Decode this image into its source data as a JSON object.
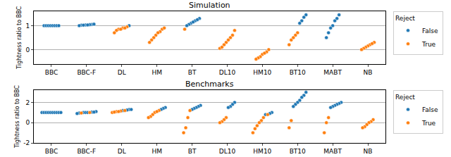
{
  "chart_data": [
    {
      "type": "scatter",
      "title": "Simulation",
      "ylabel": "Tightness ratio to BBC",
      "categories": [
        "BBC",
        "BBC-F",
        "DL",
        "HM",
        "BT",
        "DL10",
        "HM10",
        "BT10",
        "MABT",
        "NB"
      ],
      "ylim": [
        -0.6,
        1.6
      ],
      "yticks": [
        0,
        1
      ],
      "grid": true,
      "legend": "right",
      "legend_title": "Reject",
      "series": [
        {
          "name": "False",
          "color": "#1f77b4",
          "x": [
            "BBC",
            "BBC",
            "BBC",
            "BBC",
            "BBC",
            "BBC",
            "BBC",
            "BBC",
            "BBC-F",
            "BBC-F",
            "BBC-F",
            "BBC-F",
            "BBC-F",
            "BBC-F",
            "BBC-F",
            "BBC-F",
            "DL",
            "BT",
            "BT",
            "BT",
            "BT",
            "BT",
            "BT",
            "BT",
            "BT10",
            "BT10",
            "BT10",
            "BT10",
            "MABT",
            "MABT",
            "MABT",
            "MABT",
            "MABT",
            "MABT",
            "MABT"
          ],
          "values": [
            1,
            1,
            1,
            1,
            1,
            1,
            1,
            1,
            1.05,
            1.03,
            1.02,
            1.04,
            1.0,
            1.02,
            1.03,
            1.06,
            1.0,
            1.2,
            1.1,
            1.05,
            1.3,
            1.15,
            1.0,
            1.25,
            1.45,
            1.35,
            1.2,
            1.1,
            1.45,
            1.3,
            1.2,
            1.0,
            0.9,
            0.7,
            0.5
          ]
        },
        {
          "name": "True",
          "color": "#ff7f0e",
          "x": [
            "DL",
            "DL",
            "DL",
            "DL",
            "DL",
            "DL",
            "DL",
            "HM",
            "HM",
            "HM",
            "HM",
            "HM",
            "HM",
            "HM",
            "HM",
            "BT",
            "DL10",
            "DL10",
            "DL10",
            "DL10",
            "DL10",
            "DL10",
            "DL10",
            "DL10",
            "HM10",
            "HM10",
            "HM10",
            "HM10",
            "HM10",
            "HM10",
            "HM10",
            "BT10",
            "BT10",
            "BT10",
            "BT10",
            "BT10",
            "NB",
            "NB",
            "NB",
            "NB",
            "NB",
            "NB",
            "NB"
          ],
          "values": [
            0.9,
            0.85,
            0.95,
            0.8,
            0.7,
            0.9,
            0.85,
            0.85,
            0.75,
            0.6,
            0.5,
            0.4,
            0.3,
            0.7,
            0.9,
            0.85,
            0.8,
            0.6,
            0.5,
            0.3,
            0.2,
            0.05,
            0.4,
            0.1,
            0,
            -0.1,
            -0.2,
            -0.3,
            -0.35,
            -0.15,
            -0.4,
            0.7,
            0.6,
            0.4,
            0.2,
            0.5,
            0.3,
            0.2,
            0.15,
            0.1,
            0.05,
            0.25,
            0
          ]
        }
      ]
    },
    {
      "type": "scatter",
      "title": "Benchmarks",
      "ylabel": "Tightness ratio to BBC",
      "categories": [
        "BBC",
        "BBC-F",
        "DL",
        "HM",
        "BT",
        "DL10",
        "HM10",
        "BT10",
        "MABT",
        "NB"
      ],
      "ylim": [
        -2,
        3.2
      ],
      "yticks": [
        -2,
        0,
        2
      ],
      "grid": true,
      "legend": "right",
      "legend_title": "Reject",
      "series": [
        {
          "name": "False",
          "color": "#1f77b4",
          "x": [
            "BBC",
            "BBC",
            "BBC",
            "BBC",
            "BBC",
            "BBC",
            "BBC",
            "BBC",
            "BBC",
            "BBC",
            "BBC-F",
            "BBC-F",
            "BBC-F",
            "BBC-F",
            "BBC-F",
            "BBC-F",
            "BBC-F",
            "BBC-F",
            "DL",
            "DL",
            "DL",
            "DL",
            "HM",
            "HM",
            "HM",
            "BT",
            "BT",
            "BT",
            "BT",
            "BT",
            "DL10",
            "DL10",
            "DL10",
            "DL10",
            "HM10",
            "HM10",
            "HM10",
            "BT10",
            "BT10",
            "BT10",
            "BT10",
            "BT10",
            "BT10",
            "BT10",
            "MABT",
            "MABT",
            "MABT",
            "MABT",
            "MABT",
            "MABT"
          ],
          "values": [
            1,
            1,
            1,
            1,
            1,
            1,
            1,
            1,
            1,
            1,
            1.0,
            1.05,
            0.95,
            1.1,
            1.0,
            0.9,
            1.0,
            1.05,
            1.3,
            1.2,
            1.25,
            1.3,
            1.5,
            1.4,
            1.3,
            1.7,
            1.6,
            1.5,
            1.4,
            1.3,
            2.0,
            1.8,
            1.6,
            1.5,
            1.0,
            0.9,
            0.8,
            3.0,
            2.7,
            2.5,
            2.2,
            2.0,
            1.8,
            1.6,
            2.0,
            1.9,
            1.8,
            1.7,
            1.6,
            1.5
          ]
        },
        {
          "name": "True",
          "color": "#ff7f0e",
          "x": [
            "BBC-F",
            "BBC-F",
            "DL",
            "DL",
            "DL",
            "DL",
            "DL",
            "DL",
            "HM",
            "HM",
            "HM",
            "HM",
            "HM",
            "HM",
            "BT",
            "BT",
            "BT",
            "BT",
            "DL10",
            "DL10",
            "DL10",
            "DL10",
            "HM10",
            "HM10",
            "HM10",
            "HM10",
            "HM10",
            "HM10",
            "HM10",
            "BT10",
            "BT10",
            "MABT",
            "MABT",
            "MABT",
            "NB",
            "NB",
            "NB",
            "NB",
            "NB",
            "NB"
          ],
          "values": [
            0.95,
            1.0,
            1.1,
            1.15,
            1.0,
            1.2,
            1.05,
            1.1,
            1.2,
            1.0,
            0.8,
            0.6,
            0.5,
            1.1,
            0.5,
            -0.5,
            -1.0,
            1.2,
            0.5,
            0.3,
            0.1,
            0.0,
            0.5,
            0.2,
            0,
            -0.3,
            -0.6,
            -1.0,
            0.8,
            0.2,
            -0.5,
            0.0,
            -1.0,
            0.5,
            0.3,
            0.1,
            0,
            -0.2,
            -0.4,
            -0.5
          ]
        }
      ]
    }
  ]
}
